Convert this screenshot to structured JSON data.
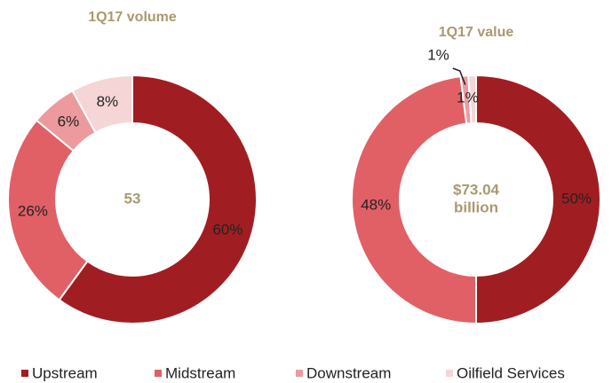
{
  "chart_data": [
    {
      "type": "donut",
      "title": "1Q17 volume",
      "categories": [
        "Upstream",
        "Midstream",
        "Downstream",
        "Oilfield Services"
      ],
      "values": [
        60,
        26,
        6,
        8
      ],
      "value_labels": [
        "60%",
        "26%",
        "6%",
        "8%"
      ],
      "colors": [
        "#a01e22",
        "#e06066",
        "#ec9a9e",
        "#f5d5d6"
      ],
      "center_label": [
        "53"
      ],
      "legend": "bottom"
    },
    {
      "type": "donut",
      "title": "1Q17 value",
      "categories": [
        "Upstream",
        "Midstream",
        "Downstream",
        "Oilfield Services"
      ],
      "values": [
        50,
        48,
        1,
        1
      ],
      "value_labels": [
        "50%",
        "48%",
        "1%",
        "1%"
      ],
      "colors": [
        "#a01e22",
        "#e06066",
        "#ec9a9e",
        "#f5d5d6"
      ],
      "center_label": [
        "$73.04",
        "billion"
      ],
      "legend": "bottom"
    }
  ]
}
